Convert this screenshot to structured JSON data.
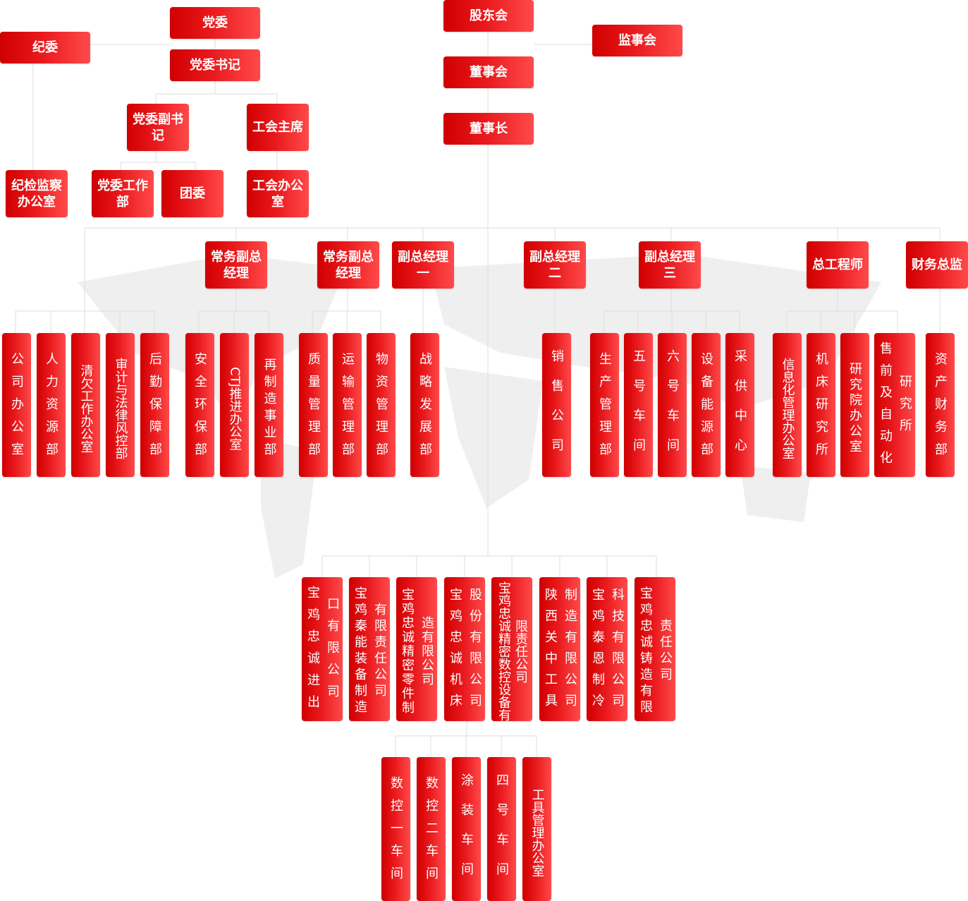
{
  "colors": {
    "box": "#e01010",
    "line": "#e0e0e0",
    "text": "#ffffff"
  },
  "top": {
    "party_committee": "党委",
    "party_secretary": "党委书记",
    "discipline_committee": "纪委",
    "shareholders": "股东会",
    "supervisors": "监事会",
    "board": "董事会",
    "chairman": "董事长",
    "deputy_party_secretary": "党委副书记",
    "union_chair": "工会主席",
    "discipline_office": "纪检监察办公室",
    "party_work_dept": "党委工作部",
    "youth_league": "团委",
    "union_office": "工会办公室"
  },
  "executives": [
    "常务副总经理",
    "常务副总经理",
    "副总经理一",
    "副总经理二",
    "副总经理三",
    "总工程师",
    "财务总监"
  ],
  "departments": [
    "公司办公室",
    "人力资源部",
    "清欠工作办公室",
    "审计与法律风控部",
    "后勤保障部",
    "安全环保部",
    "CTJ推进办公室",
    "再制造事业部",
    "质量管理部",
    "运输管理部",
    "物资管理部",
    "战略发展部",
    "销售公司",
    "生产管理部",
    "五号车间",
    "六号车间",
    "设备能源部",
    "采供中心",
    "信息化管理办公室",
    "机床研究所",
    "研究院办公室",
    "售前及自动化研究所",
    "资产财务部"
  ],
  "companies": [
    "宝鸡忠诚进出口有限公司",
    "宝鸡秦能装备制造有限责任公司",
    "宝鸡忠诚精密零件制造有限公司",
    "宝鸡忠诚机床股份有限公司",
    "宝鸡忠诚精密数控设备有限责任公司",
    "陕西关中工具制造有限公司",
    "宝鸡泰恩制冷科技有限公司",
    "宝鸡忠诚铸造有限责任公司"
  ],
  "workshops": [
    "数控一车间",
    "数控二车间",
    "涂装车间",
    "四号车间",
    "工具管理办公室"
  ]
}
